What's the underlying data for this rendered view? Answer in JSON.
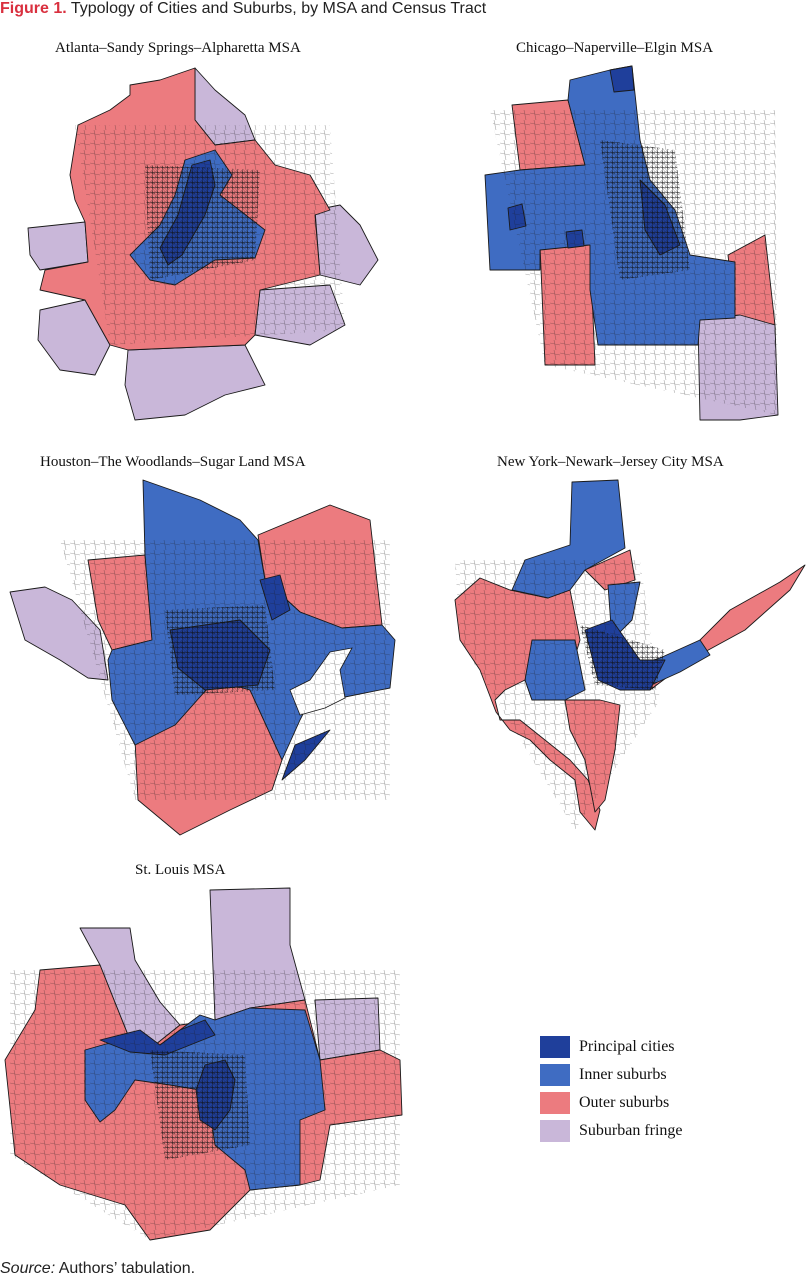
{
  "figure": {
    "label": "Figure 1.",
    "title": "Typology of Cities and Suburbs, by MSA and Census Tract"
  },
  "colors": {
    "principal": "#1f3f9b",
    "inner": "#3f6cc2",
    "outer": "#ec7b7f",
    "fringe": "#c9b7d9",
    "border": "#1a1a1a"
  },
  "maps": [
    {
      "id": "atlanta",
      "title": "Atlanta–Sandy Springs–Alpharetta MSA"
    },
    {
      "id": "chicago",
      "title": "Chicago–Naperville–Elgin MSA"
    },
    {
      "id": "houston",
      "title": "Houston–The Woodlands–Sugar Land MSA"
    },
    {
      "id": "newyork",
      "title": "New York–Newark–Jersey City MSA"
    },
    {
      "id": "stlouis",
      "title": "St. Louis MSA"
    }
  ],
  "legend": [
    {
      "key": "principal",
      "label": "Principal cities"
    },
    {
      "key": "inner",
      "label": "Inner suburbs"
    },
    {
      "key": "outer",
      "label": "Outer suburbs"
    },
    {
      "key": "fringe",
      "label": "Suburban fringe"
    }
  ],
  "source": {
    "label": "Source:",
    "text": "Authors’ tabulation."
  }
}
